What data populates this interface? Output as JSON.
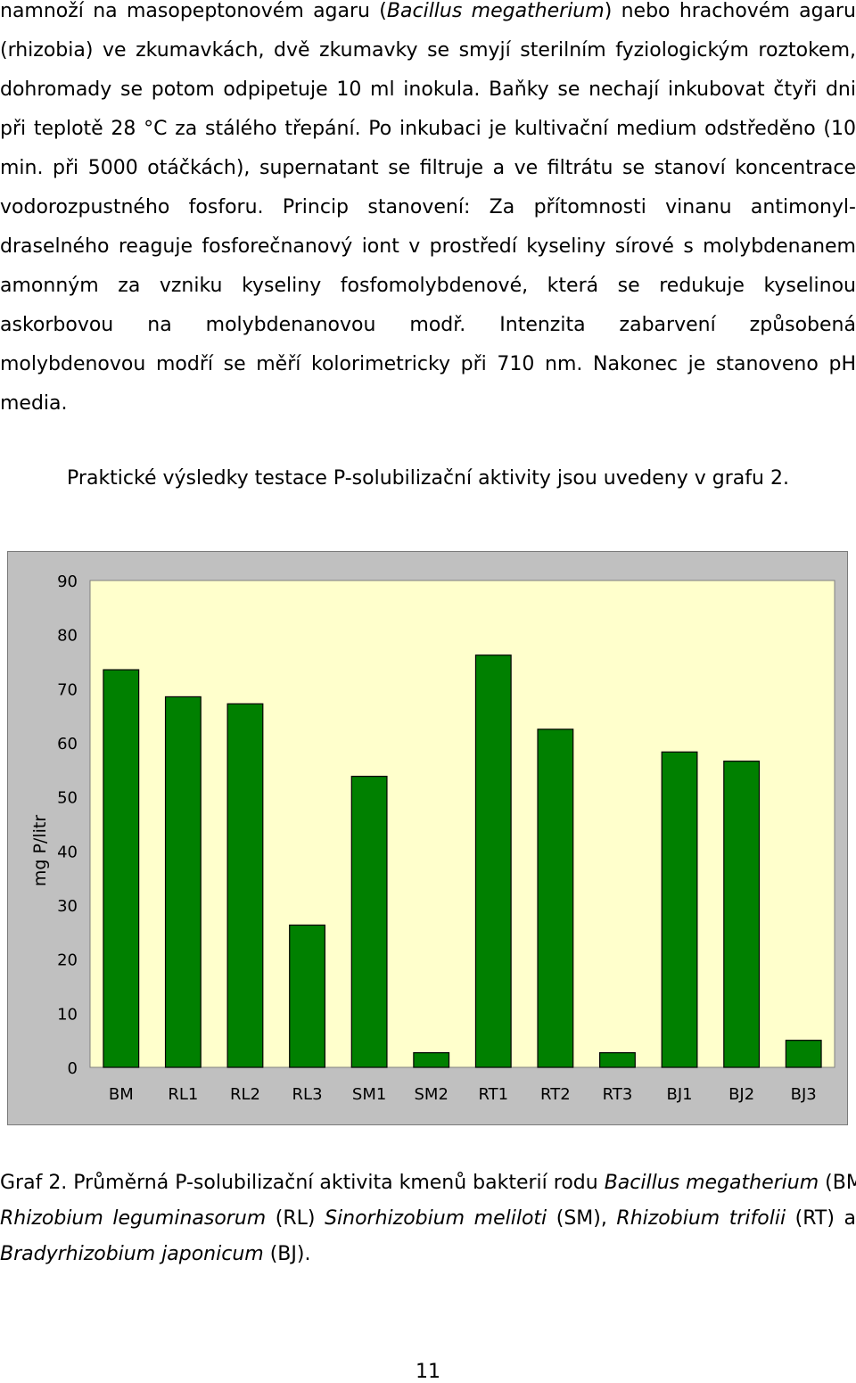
{
  "paragraph1": {
    "lines": [
      [
        "namnoží na masopeptonovém agaru (",
        {
          "i": "Bacillus megatherium"
        },
        ") nebo hrachovém agaru"
      ],
      [
        "(rhizobia) ve zkumavkách, dvě zkumavky se smyjí sterilním fyziologickým roztokem,"
      ],
      [
        "dohromady  se potom odpipetuje 10 ml inokula. Baňky se nechají inkubovat čtyři dni"
      ],
      [
        "při teplotě  28 °C za stálého třepání. Po inkubaci je kultivační medium odstředěno (10"
      ],
      [
        "min. při 5000 otáčkách), supernatant se filtruje a ve filtrátu se stanoví koncentrace"
      ],
      [
        "vodorozpustného  fosforu.  Princip  stanovení:  Za  přítomnosti  vinanu  antimonyl-"
      ],
      [
        "draselného reaguje fosforečnanový iont v prostředí kyseliny sírové s molybdenanem"
      ],
      [
        "amonným  za  vzniku  kyseliny  fosfomolybdenové,  která  se  redukuje  kyselinou"
      ],
      [
        "askorbovou   na   molybdenanovou   modř.  Intenzita   zabarvení   způsobená"
      ],
      [
        "molybdenovou modří se měří kolorimetricky při 710 nm.  Nakonec je stanoveno pH"
      ],
      [
        "media."
      ]
    ]
  },
  "intro_sentence": "Praktické výsledky testace P-solubilizační aktivity jsou uvedeny v grafu 2.",
  "chart_data": {
    "type": "bar",
    "categories": [
      "BM",
      "RL1",
      "RL2",
      "RL3",
      "SM1",
      "SM2",
      "RT1",
      "RT2",
      "RT3",
      "BJ1",
      "BJ2",
      "BJ3"
    ],
    "values": [
      73.5,
      68.5,
      67.2,
      26.3,
      53.8,
      2.7,
      76.2,
      62.5,
      2.7,
      58.3,
      56.6,
      5.0
    ],
    "ylabel": "mg P/litr",
    "xlabel": "",
    "title": "",
    "ylim": [
      0,
      90
    ],
    "yticks": [
      "0",
      "10",
      "20",
      "30",
      "40",
      "50",
      "60",
      "70",
      "80",
      "90"
    ],
    "grid": false,
    "bar_color": "#008000",
    "plot_background": "#ffffcc",
    "frame_background": "#c0c0c0"
  },
  "caption": {
    "lines": [
      [
        "Graf 2. Průměrná P-solubilizační aktivita kmenů bakterií rodu ",
        {
          "i": "Bacillus megatherium"
        },
        " (BM)"
      ],
      [
        {
          "i": "Rhizobium leguminasorum"
        },
        " (RL) ",
        {
          "i": "Sinorhizobium meliloti"
        },
        " (SM), ",
        {
          "i": "Rhizobium trifolii"
        },
        " (RT) a"
      ],
      [
        {
          "i": "Bradyrhizobium japonicum"
        },
        " (BJ)."
      ]
    ]
  },
  "page_number": "11"
}
